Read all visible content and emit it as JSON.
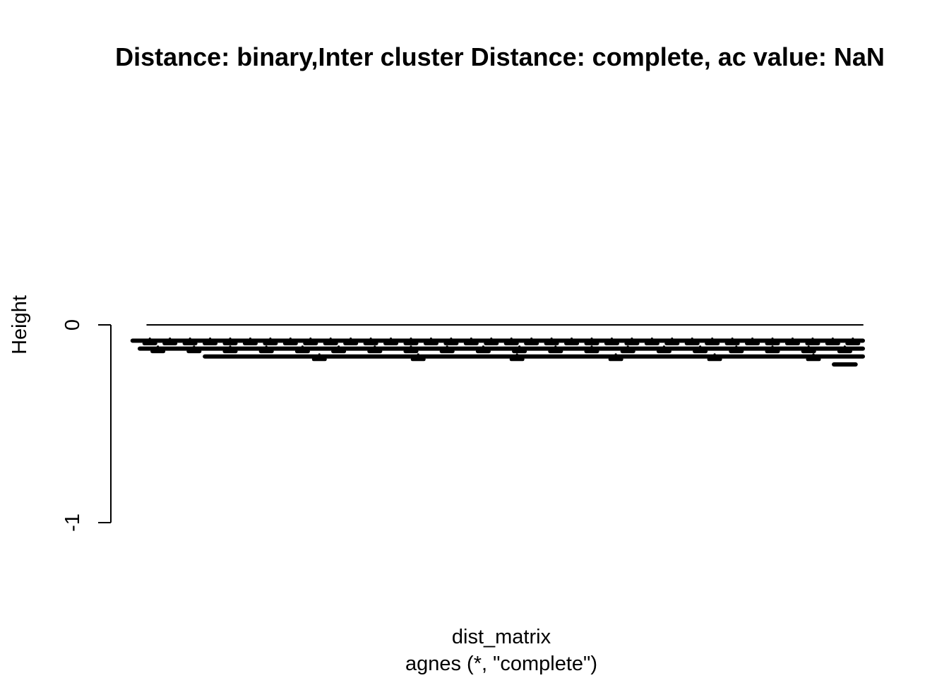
{
  "chart_data": {
    "type": "dendrogram",
    "title": "Distance: binary,Inter cluster Distance: complete, ac value: NaN",
    "xlabel": "dist_matrix",
    "sub": "agnes (*, \"complete\")",
    "ylabel": "Height",
    "ylim": [
      -1,
      0
    ],
    "yticks": [
      0,
      -1
    ],
    "ytick_labels": [
      "0",
      "-1"
    ],
    "merge_levels": [
      {
        "height": 0.0,
        "x_start": 0.01,
        "x_end": 1.0
      },
      {
        "height": -0.08,
        "x_start": -0.01,
        "x_end": 1.0
      },
      {
        "height": -0.12,
        "x_start": 0.0,
        "x_end": 1.0
      },
      {
        "height": -0.16,
        "x_start": 0.09,
        "x_end": 1.0
      },
      {
        "height": -0.2,
        "x_start": 0.96,
        "x_end": 0.99
      }
    ],
    "band_groups": [
      {
        "height": -0.08,
        "n": 36
      },
      {
        "height": -0.12,
        "n": 20
      },
      {
        "height": -0.16,
        "n": 6
      }
    ]
  }
}
